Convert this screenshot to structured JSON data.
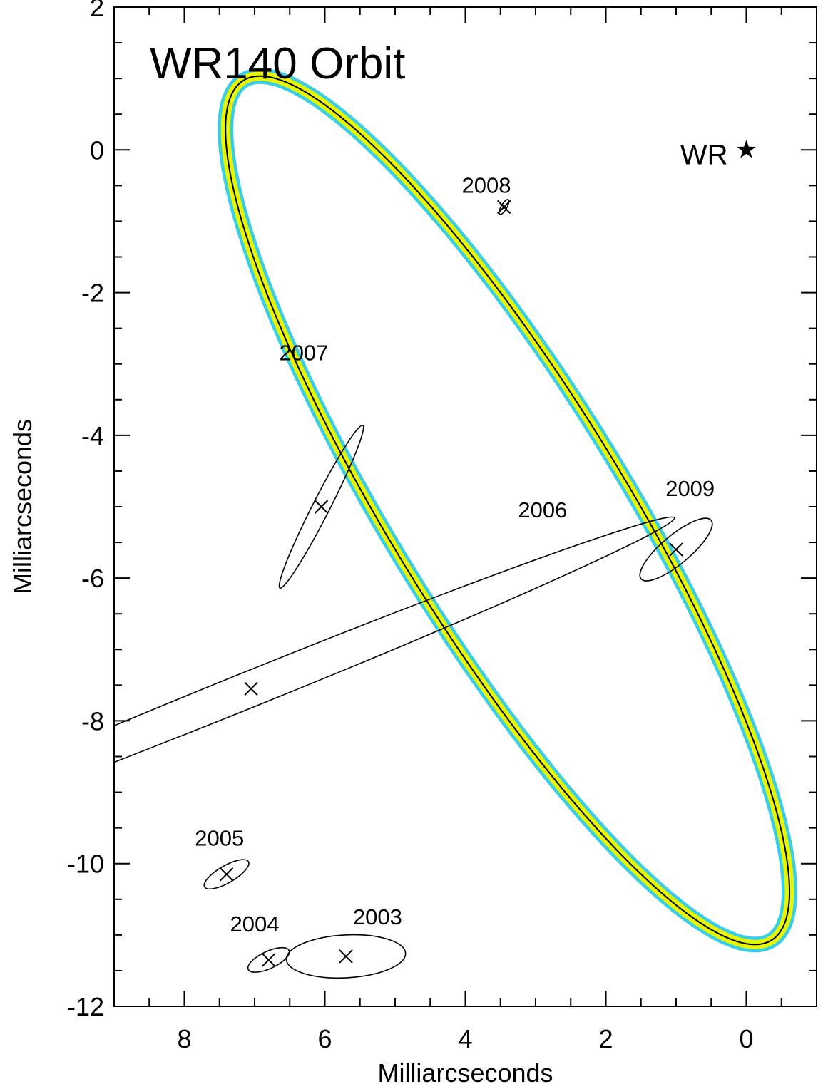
{
  "chart_data": {
    "type": "scatter",
    "title": "WR140 Orbit",
    "xlabel": "Milliarcseconds",
    "ylabel": "Milliarcseconds",
    "xlim": [
      9.0,
      -1.0
    ],
    "ylim": [
      -12.0,
      2.0
    ],
    "x_ticks": [
      8,
      6,
      4,
      2,
      0
    ],
    "y_ticks": [
      2,
      0,
      -2,
      -4,
      -6,
      -8,
      -10,
      -12
    ],
    "x_minor_step": 0.5,
    "y_minor_step": 0.5,
    "orbit": {
      "center": [
        3.4,
        -5.05
      ],
      "semi_axis_a": 7.1,
      "semi_axis_b": 1.65,
      "rotation_deg": 58,
      "band_colors": [
        "#22c8e6",
        "#e8f500"
      ],
      "line_color": "#000000"
    },
    "star": {
      "label": "WR",
      "x": 0.0,
      "y": 0.0
    },
    "observations": [
      {
        "label": "2003",
        "x": 5.7,
        "y": -11.3,
        "ellipse": {
          "a": 0.85,
          "b": 0.3,
          "angle_deg": 3
        },
        "label_pos": [
          5.25,
          -10.85
        ]
      },
      {
        "label": "2004",
        "x": 6.8,
        "y": -11.35,
        "ellipse": {
          "a": 0.32,
          "b": 0.12,
          "angle_deg": 25
        },
        "label_pos": [
          7.0,
          -10.95
        ]
      },
      {
        "label": "2005",
        "x": 7.4,
        "y": -10.15,
        "ellipse": {
          "a": 0.36,
          "b": 0.12,
          "angle_deg": 30
        },
        "label_pos": [
          7.5,
          -9.75
        ]
      },
      {
        "label": "2006",
        "x": 7.05,
        "y": -7.55,
        "ellipse": {
          "a": 6.5,
          "b": 0.25,
          "angle_deg": 22
        },
        "label_pos": [
          2.9,
          -5.15
        ]
      },
      {
        "label": "2007",
        "x": 6.05,
        "y": -5.0,
        "ellipse": {
          "a": 1.3,
          "b": 0.12,
          "angle_deg": 63
        },
        "label_pos": [
          6.3,
          -2.95
        ]
      },
      {
        "label": "2008",
        "x": 3.45,
        "y": -0.8,
        "ellipse": {
          "a": 0.12,
          "b": 0.04,
          "angle_deg": 60
        },
        "label_pos": [
          3.7,
          -0.6
        ]
      },
      {
        "label": "2009",
        "x": 1.0,
        "y": -5.6,
        "ellipse": {
          "a": 0.65,
          "b": 0.2,
          "angle_deg": 40
        },
        "label_pos": [
          0.8,
          -4.85
        ]
      }
    ]
  }
}
